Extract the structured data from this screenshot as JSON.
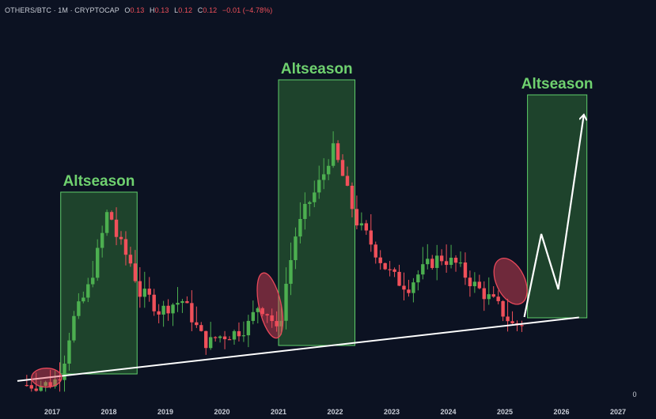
{
  "header": {
    "symbol": "OTHERS/BTC · 1M · CRYPTOCAP",
    "open_label": "O",
    "open": "0.13",
    "high_label": "H",
    "high": "0.13",
    "low_label": "L",
    "low": "0.12",
    "close_label": "C",
    "close": "0.12",
    "change": "−0.01 (−4.78%)"
  },
  "colors": {
    "background": "#0c1222",
    "up": "#4caf50",
    "down": "#f0505a",
    "zone_fill": "#2e6b35",
    "zone_stroke": "#5fcf6a",
    "zone_label": "#6fd16f",
    "trendline": "#ffffff",
    "highlight": "#e8485a"
  },
  "chart_data": {
    "type": "candlestick",
    "title": "OTHERS/BTC · 1M · CRYPTOCAP",
    "x_unit": "year",
    "x_ticks": [
      "2017",
      "2018",
      "2019",
      "2020",
      "2021",
      "2022",
      "2023",
      "2024",
      "2025",
      "2026",
      "2027"
    ],
    "y_axis_label": "0",
    "y_range_note": "relative dominance scale, no numeric ticks shown except 0",
    "zones": [
      {
        "label": "Altseason",
        "x_start": 2017.15,
        "x_end": 2018.5
      },
      {
        "label": "Altseason",
        "x_start": 2021.0,
        "x_end": 2022.35
      },
      {
        "label": "Altseason",
        "x_start": 2025.4,
        "x_end": 2026.45
      }
    ],
    "trendline": {
      "from": {
        "x": 2016.3,
        "y": 0.035
      },
      "to": {
        "x": 2026.2,
        "y": 0.112
      }
    },
    "highlights": [
      {
        "x_center": 2016.9,
        "y_center": 0.042,
        "note": "2017 low"
      },
      {
        "x_center": 2020.85,
        "y_center": 0.16,
        "note": "2020 low"
      },
      {
        "x_center": 2025.1,
        "y_center": 0.17,
        "note": "2025 low"
      }
    ],
    "projection": [
      {
        "x": 2025.4,
        "y": 0.11
      },
      {
        "x": 2025.7,
        "y": 0.38
      },
      {
        "x": 2026.0,
        "y": 0.17
      },
      {
        "x": 2026.45,
        "y": 0.91
      }
    ]
  }
}
